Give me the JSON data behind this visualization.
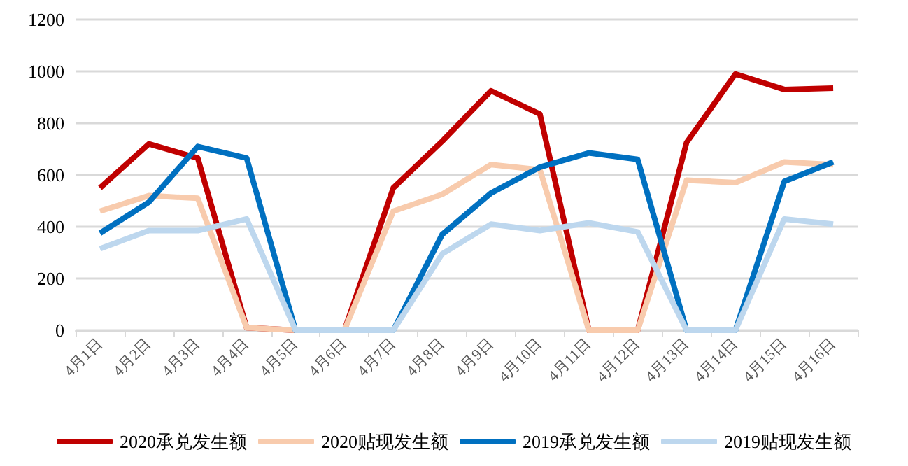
{
  "chart_data": {
    "type": "line",
    "categories": [
      "4月1日",
      "4月2日",
      "4月3日",
      "4月4日",
      "4月5日",
      "4月6日",
      "4月7日",
      "4月8日",
      "4月9日",
      "4月10日",
      "4月11日",
      "4月12日",
      "4月13日",
      "4月14日",
      "4月15日",
      "4月16日"
    ],
    "series": [
      {
        "name": "2020承兑发生额",
        "color": "#c00000",
        "values": [
          550,
          720,
          665,
          10,
          0,
          0,
          550,
          730,
          925,
          835,
          0,
          0,
          725,
          990,
          930,
          935
        ]
      },
      {
        "name": "2020贴现发生额",
        "color": "#f8cbad",
        "values": [
          460,
          520,
          510,
          10,
          0,
          0,
          460,
          525,
          640,
          620,
          0,
          0,
          580,
          570,
          650,
          640
        ]
      },
      {
        "name": "2019承兑发生额",
        "color": "#0070c0",
        "values": [
          375,
          495,
          710,
          665,
          0,
          0,
          0,
          370,
          530,
          630,
          685,
          660,
          0,
          0,
          575,
          650
        ]
      },
      {
        "name": "2019贴现发生额",
        "color": "#bdd7ee",
        "values": [
          315,
          385,
          385,
          430,
          0,
          0,
          0,
          295,
          410,
          385,
          415,
          380,
          0,
          0,
          430,
          410
        ]
      }
    ],
    "ylim": [
      0,
      1200
    ],
    "yticks": [
      0,
      200,
      400,
      600,
      800,
      1000,
      1200
    ],
    "grid": "y",
    "legend": "bottom",
    "marker": "none",
    "line_style": "solid"
  }
}
